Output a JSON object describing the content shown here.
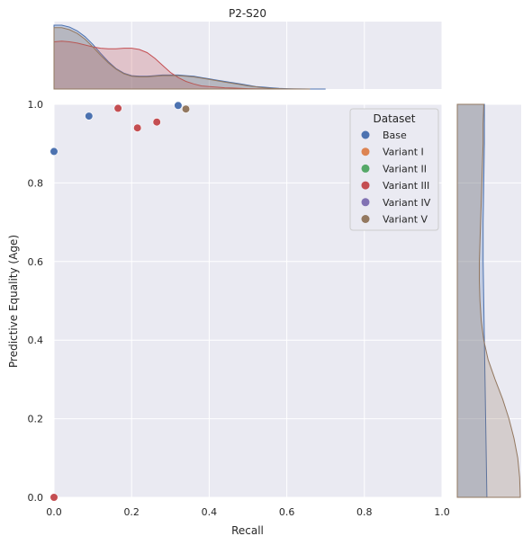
{
  "chart_data": {
    "type": "scatter",
    "title": "P2-S20",
    "xlabel": "Recall",
    "ylabel": "Predictive Equality (Age)",
    "xlim": [
      0,
      1
    ],
    "ylim": [
      0,
      1
    ],
    "x_ticks": [
      "0.0",
      "0.2",
      "0.4",
      "0.6",
      "0.8",
      "1.0"
    ],
    "y_ticks": [
      "0.0",
      "0.2",
      "0.4",
      "0.6",
      "0.8",
      "1.0"
    ],
    "grid": true,
    "legend": {
      "title": "Dataset",
      "placement": "top-right"
    },
    "series": [
      {
        "name": "Base",
        "color": "#4c72b0",
        "points": [
          [
            0.0,
            0.88
          ],
          [
            0.09,
            0.97
          ],
          [
            0.32,
            0.997
          ]
        ]
      },
      {
        "name": "Variant I",
        "color": "#dd8452",
        "points": []
      },
      {
        "name": "Variant II",
        "color": "#55a868",
        "points": []
      },
      {
        "name": "Variant III",
        "color": "#c44e52",
        "points": [
          [
            0.0,
            0.0
          ],
          [
            0.165,
            0.99
          ],
          [
            0.215,
            0.94
          ],
          [
            0.265,
            0.955
          ]
        ]
      },
      {
        "name": "Variant IV",
        "color": "#8172b3",
        "points": []
      },
      {
        "name": "Variant V",
        "color": "#937860",
        "points": [
          [
            0.34,
            0.988
          ]
        ]
      }
    ],
    "marginal_top": [
      {
        "name": "Base",
        "color": "#4c72b0",
        "x": [
          0,
          0.02,
          0.04,
          0.06,
          0.08,
          0.1,
          0.12,
          0.14,
          0.16,
          0.18,
          0.2,
          0.22,
          0.24,
          0.26,
          0.28,
          0.3,
          0.32,
          0.34,
          0.36,
          0.38,
          0.4,
          0.42,
          0.44,
          0.46,
          0.48,
          0.5,
          0.52,
          0.54,
          0.56,
          0.58,
          0.6,
          0.62,
          0.64,
          0.66,
          0.68,
          0.7
        ],
        "density": [
          1.0,
          1.0,
          0.97,
          0.91,
          0.82,
          0.7,
          0.56,
          0.43,
          0.32,
          0.25,
          0.21,
          0.2,
          0.2,
          0.21,
          0.22,
          0.22,
          0.22,
          0.21,
          0.2,
          0.18,
          0.16,
          0.14,
          0.12,
          0.1,
          0.08,
          0.06,
          0.04,
          0.03,
          0.02,
          0.01,
          0.005,
          0.002,
          0.001,
          0,
          0,
          0
        ]
      },
      {
        "name": "Variant III",
        "color": "#c44e52",
        "x": [
          0,
          0.02,
          0.04,
          0.06,
          0.08,
          0.1,
          0.12,
          0.14,
          0.16,
          0.18,
          0.2,
          0.22,
          0.24,
          0.26,
          0.28,
          0.3,
          0.32,
          0.34,
          0.36,
          0.38,
          0.4,
          0.42,
          0.44,
          0.46,
          0.48,
          0.5,
          0.52,
          0.54,
          0.56,
          0.58,
          0.6
        ],
        "density": [
          0.74,
          0.75,
          0.74,
          0.72,
          0.69,
          0.66,
          0.64,
          0.63,
          0.63,
          0.64,
          0.64,
          0.62,
          0.57,
          0.48,
          0.37,
          0.26,
          0.18,
          0.12,
          0.08,
          0.05,
          0.04,
          0.03,
          0.02,
          0.015,
          0.01,
          0.006,
          0.003,
          0.001,
          0,
          0,
          0
        ]
      },
      {
        "name": "Variant V",
        "color": "#937860",
        "x": [
          0,
          0.02,
          0.04,
          0.06,
          0.08,
          0.1,
          0.12,
          0.14,
          0.16,
          0.18,
          0.2,
          0.22,
          0.24,
          0.26,
          0.28,
          0.3,
          0.32,
          0.34,
          0.36,
          0.38,
          0.4,
          0.42,
          0.44,
          0.46,
          0.48,
          0.5,
          0.52,
          0.54,
          0.56,
          0.58,
          0.6,
          0.62,
          0.64,
          0.66
        ],
        "density": [
          0.96,
          0.96,
          0.93,
          0.87,
          0.78,
          0.66,
          0.53,
          0.41,
          0.31,
          0.24,
          0.2,
          0.19,
          0.19,
          0.2,
          0.21,
          0.21,
          0.21,
          0.2,
          0.19,
          0.17,
          0.15,
          0.13,
          0.11,
          0.09,
          0.07,
          0.05,
          0.035,
          0.02,
          0.01,
          0.005,
          0.002,
          0.001,
          0,
          0
        ]
      }
    ],
    "marginal_right": [
      {
        "name": "Base",
        "color": "#4c72b0",
        "y": [
          0,
          0.1,
          0.2,
          0.3,
          0.4,
          0.5,
          0.6,
          0.7,
          0.8,
          0.9,
          0.95,
          1.0
        ],
        "density": [
          0.47,
          0.46,
          0.45,
          0.44,
          0.43,
          0.42,
          0.41,
          0.41,
          0.42,
          0.43,
          0.43,
          0.43
        ]
      },
      {
        "name": "Variant V",
        "color": "#937860",
        "y": [
          0,
          0.05,
          0.1,
          0.15,
          0.2,
          0.25,
          0.3,
          0.35,
          0.4,
          0.45,
          0.5,
          0.55,
          0.6,
          0.65,
          0.7,
          0.75,
          0.8,
          0.85,
          0.9,
          0.95,
          1.0
        ],
        "density": [
          1.0,
          0.99,
          0.96,
          0.9,
          0.82,
          0.72,
          0.6,
          0.49,
          0.42,
          0.38,
          0.36,
          0.35,
          0.35,
          0.36,
          0.37,
          0.38,
          0.39,
          0.4,
          0.41,
          0.41,
          0.42
        ]
      }
    ]
  }
}
